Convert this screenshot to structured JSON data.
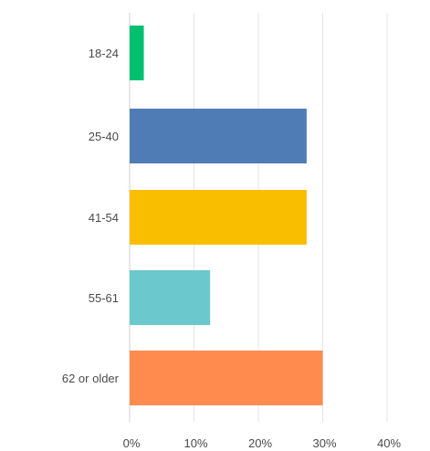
{
  "chart_data": {
    "type": "bar",
    "orientation": "horizontal",
    "categories": [
      "18-24",
      "25-40",
      "41-54",
      "55-61",
      "62 or older"
    ],
    "values": [
      2.2,
      27.5,
      27.5,
      12.5,
      30
    ],
    "colors": [
      "#00bf6f",
      "#507cb6",
      "#f9be00",
      "#6bc8cd",
      "#ff8b4f"
    ],
    "xlim": [
      0,
      40
    ],
    "xticks": [
      0,
      10,
      20,
      30,
      40
    ],
    "xtick_labels": [
      "0%",
      "10%",
      "20%",
      "30%",
      "40%"
    ],
    "grid": true,
    "title": "",
    "xlabel": "",
    "ylabel": ""
  }
}
